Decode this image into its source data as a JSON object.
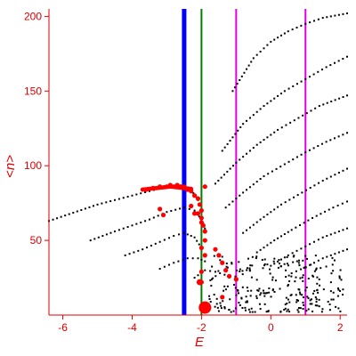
{
  "chart_data": {
    "type": "scatter",
    "xlabel": "E",
    "ylabel": "<n>",
    "xlim": [
      -6.4,
      2.2
    ],
    "ylim": [
      0,
      205
    ],
    "xticks": [
      -6,
      -4,
      -2,
      0,
      2
    ],
    "yticks": [
      50,
      100,
      150,
      200
    ],
    "grid": false,
    "colors": {
      "axes": "#e00000",
      "scatter": "#000000",
      "highlight": "#ff0000",
      "blue_line": "#0000ff",
      "green_line": "#008000",
      "magenta_line": "#e000e0"
    },
    "vertical_lines": [
      {
        "x": -2.5,
        "color": "#0000ff",
        "width": "thick"
      },
      {
        "x": -2.0,
        "color": "#008000",
        "width": "thin"
      },
      {
        "x": -1.0,
        "color": "#e000e0",
        "width": "thin"
      },
      {
        "x": 1.0,
        "color": "#e000e0",
        "width": "thin"
      }
    ],
    "series": [
      {
        "points": [
          [
            -6.4,
            63
          ],
          [
            -5.0,
            74
          ],
          [
            -4.0,
            80
          ],
          [
            -3.5,
            83
          ],
          [
            -3.0,
            86
          ],
          [
            -2.5,
            87
          ],
          [
            -2.3,
            84
          ],
          [
            -2.1,
            77
          ],
          [
            -2.0,
            70
          ]
        ]
      },
      {
        "points": [
          [
            -5.2,
            50
          ],
          [
            -4.5,
            56
          ],
          [
            -4.0,
            60
          ],
          [
            -3.5,
            64
          ],
          [
            -3.0,
            69
          ],
          [
            -2.5,
            72
          ],
          [
            -2.2,
            70
          ],
          [
            -2.0,
            64
          ],
          [
            -1.9,
            58
          ]
        ]
      },
      {
        "points": [
          [
            -4.2,
            40
          ],
          [
            -3.7,
            44
          ],
          [
            -3.2,
            49
          ],
          [
            -2.8,
            53
          ],
          [
            -2.5,
            55
          ],
          [
            -2.2,
            52
          ],
          [
            -2.0,
            45
          ]
        ]
      },
      {
        "points": [
          [
            -3.2,
            31
          ],
          [
            -2.8,
            35
          ],
          [
            -2.4,
            38
          ],
          [
            -2.1,
            38
          ],
          [
            -1.9,
            36
          ]
        ]
      },
      {
        "points": [
          [
            -2.2,
            25
          ],
          [
            -1.9,
            30
          ],
          [
            -1.6,
            29
          ],
          [
            -1.2,
            26
          ]
        ]
      },
      {
        "points": [
          [
            -1.1,
            150
          ],
          [
            -0.5,
            172
          ],
          [
            0.0,
            183
          ],
          [
            0.5,
            190
          ],
          [
            1.0,
            195
          ],
          [
            1.5,
            199
          ],
          [
            2.2,
            202
          ]
        ]
      },
      {
        "points": [
          [
            -1.4,
            110
          ],
          [
            -0.8,
            128
          ],
          [
            -0.2,
            140
          ],
          [
            0.4,
            150
          ],
          [
            1.0,
            158
          ],
          [
            1.6,
            166
          ],
          [
            2.2,
            173
          ]
        ]
      },
      {
        "points": [
          [
            -1.6,
            88
          ],
          [
            -1.0,
            102
          ],
          [
            -0.4,
            114
          ],
          [
            0.2,
            124
          ],
          [
            0.8,
            132
          ],
          [
            1.4,
            140
          ],
          [
            2.2,
            147
          ]
        ]
      },
      {
        "points": [
          [
            -1.3,
            72
          ],
          [
            -0.8,
            82
          ],
          [
            -0.2,
            93
          ],
          [
            0.4,
            101
          ],
          [
            1.0,
            109
          ],
          [
            1.6,
            116
          ],
          [
            2.2,
            122
          ]
        ]
      },
      {
        "points": [
          [
            -0.8,
            55
          ],
          [
            -0.3,
            64
          ],
          [
            0.3,
            74
          ],
          [
            0.9,
            82
          ],
          [
            1.5,
            90
          ],
          [
            2.2,
            98
          ]
        ]
      },
      {
        "points": [
          [
            -0.4,
            42
          ],
          [
            0.1,
            50
          ],
          [
            0.6,
            57
          ],
          [
            1.2,
            65
          ],
          [
            1.8,
            72
          ],
          [
            2.2,
            76
          ]
        ]
      },
      {
        "points": [
          [
            0.0,
            33
          ],
          [
            0.5,
            40
          ],
          [
            1.0,
            46
          ],
          [
            1.5,
            52
          ],
          [
            2.2,
            58
          ]
        ]
      },
      {
        "points": [
          [
            0.6,
            28
          ],
          [
            1.0,
            32
          ],
          [
            1.5,
            38
          ],
          [
            2.2,
            44
          ]
        ]
      }
    ],
    "cluster_region": {
      "x": [
        -1.8,
        2.1
      ],
      "y": [
        2,
        40
      ]
    },
    "highlights": [
      [
        -3.6,
        84
      ],
      [
        -3.4,
        85
      ],
      [
        -3.2,
        86
      ],
      [
        -3.0,
        86
      ],
      [
        -2.9,
        87
      ],
      [
        -2.8,
        86
      ],
      [
        -2.7,
        87
      ],
      [
        -2.6,
        86
      ],
      [
        -2.5,
        86
      ],
      [
        -2.4,
        84
      ],
      [
        -2.3,
        83
      ],
      [
        -2.2,
        80
      ],
      [
        -2.1,
        78
      ],
      [
        -2.05,
        74
      ],
      [
        -2.0,
        70
      ],
      [
        -2.1,
        68
      ],
      [
        -2.0,
        65
      ],
      [
        -2.0,
        62
      ],
      [
        -1.95,
        60
      ],
      [
        -1.9,
        56
      ],
      [
        -1.9,
        50
      ],
      [
        -2.3,
        73
      ],
      [
        -2.2,
        68
      ],
      [
        -3.2,
        71
      ],
      [
        -3.1,
        67
      ],
      [
        -1.9,
        86
      ],
      [
        -2.0,
        45
      ],
      [
        -1.9,
        40
      ],
      [
        -1.6,
        44
      ],
      [
        -1.5,
        40
      ],
      [
        -1.4,
        35
      ],
      [
        -1.3,
        30
      ],
      [
        -1.2,
        26
      ],
      [
        -1.0,
        24
      ],
      [
        -2.0,
        29
      ],
      [
        -2.0,
        22
      ],
      [
        -1.4,
        12
      ]
    ],
    "big_highlights": [
      {
        "x": -1.9,
        "y": 5,
        "size": "large"
      },
      {
        "x": -2.05,
        "y": 22,
        "size": "small"
      }
    ]
  }
}
